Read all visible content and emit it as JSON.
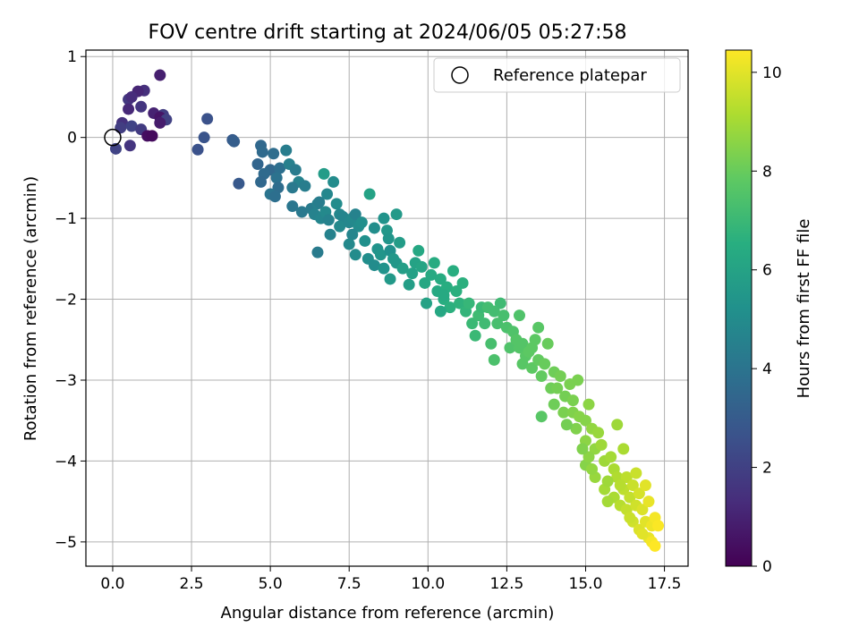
{
  "chart_data": {
    "type": "scatter",
    "title": "FOV centre drift starting at 2024/06/05 05:27:58",
    "xlabel": "Angular distance from reference (arcmin)",
    "ylabel": "Rotation from reference (arcmin)",
    "xlim": [
      -0.85,
      18.25
    ],
    "ylim": [
      -5.3,
      1.08
    ],
    "x_ticks": [
      "0.0",
      "2.5",
      "5.0",
      "7.5",
      "10.0",
      "12.5",
      "15.0",
      "17.5"
    ],
    "x_tick_values": [
      0,
      2.5,
      5,
      7.5,
      10,
      12.5,
      15,
      17.5
    ],
    "y_ticks": [
      "1",
      "0",
      "−1",
      "−2",
      "−3",
      "−4",
      "−5"
    ],
    "y_tick_values": [
      1,
      0,
      -1,
      -2,
      -3,
      -4,
      -5
    ],
    "grid": true,
    "legend": {
      "label": "Reference platepar",
      "placement": "top-right"
    },
    "reference_point": {
      "x": 0,
      "y": 0
    },
    "colorbar": {
      "label": "Hours from first FF file",
      "colormap": "viridis",
      "range": [
        0,
        10.45
      ],
      "ticks": [
        "0",
        "2",
        "4",
        "6",
        "8",
        "10"
      ],
      "tick_values": [
        0,
        2,
        4,
        6,
        8,
        10
      ]
    },
    "points": [
      [
        1.5,
        0.77,
        0.9
      ],
      [
        1.0,
        0.58,
        1.4
      ],
      [
        0.8,
        0.57,
        1.1
      ],
      [
        0.5,
        0.47,
        1.7
      ],
      [
        0.6,
        0.5,
        1.3
      ],
      [
        0.9,
        0.38,
        1.6
      ],
      [
        0.5,
        0.35,
        1.2
      ],
      [
        1.3,
        0.3,
        1.0
      ],
      [
        1.6,
        0.28,
        1.9
      ],
      [
        1.5,
        0.25,
        0.6
      ],
      [
        1.7,
        0.22,
        2.0
      ],
      [
        1.5,
        0.18,
        0.8
      ],
      [
        0.3,
        0.18,
        1.5
      ],
      [
        0.25,
        0.12,
        1.9
      ],
      [
        0.6,
        0.14,
        2.1
      ],
      [
        0.9,
        0.1,
        1.8
      ],
      [
        1.1,
        0.02,
        0.4
      ],
      [
        1.25,
        0.02,
        0.3
      ],
      [
        0.1,
        -0.14,
        2.1
      ],
      [
        0.55,
        -0.1,
        1.6
      ],
      [
        3.0,
        0.23,
        2.6
      ],
      [
        2.9,
        0.0,
        2.7
      ],
      [
        2.7,
        -0.15,
        2.6
      ],
      [
        3.8,
        -0.03,
        3.0
      ],
      [
        3.85,
        -0.05,
        3.1
      ],
      [
        4.0,
        -0.57,
        2.9
      ],
      [
        4.7,
        -0.1,
        3.5
      ],
      [
        4.75,
        -0.18,
        3.6
      ],
      [
        5.1,
        -0.2,
        3.7
      ],
      [
        4.6,
        -0.33,
        3.4
      ],
      [
        5.0,
        -0.4,
        3.5
      ],
      [
        5.3,
        -0.38,
        3.8
      ],
      [
        4.8,
        -0.45,
        3.6
      ],
      [
        5.2,
        -0.5,
        3.9
      ],
      [
        4.7,
        -0.55,
        3.5
      ],
      [
        5.25,
        -0.62,
        3.7
      ],
      [
        5.0,
        -0.7,
        4.0
      ],
      [
        5.15,
        -0.73,
        3.8
      ],
      [
        5.5,
        -0.16,
        4.4
      ],
      [
        5.6,
        -0.33,
        4.5
      ],
      [
        5.8,
        -0.4,
        4.3
      ],
      [
        5.9,
        -0.55,
        4.6
      ],
      [
        6.1,
        -0.6,
        4.4
      ],
      [
        5.7,
        -0.62,
        4.2
      ],
      [
        5.7,
        -0.85,
        4.1
      ],
      [
        6.0,
        -0.92,
        4.2
      ],
      [
        6.3,
        -0.88,
        4.3
      ],
      [
        6.5,
        -0.82,
        4.5
      ],
      [
        6.4,
        -0.95,
        4.6
      ],
      [
        6.6,
        -1.0,
        4.7
      ],
      [
        6.55,
        -0.8,
        4.4
      ],
      [
        6.7,
        -0.45,
        5.7
      ],
      [
        6.8,
        -0.7,
        4.8
      ],
      [
        6.75,
        -0.92,
        4.9
      ],
      [
        6.85,
        -1.02,
        4.6
      ],
      [
        7.0,
        -0.55,
        5.0
      ],
      [
        7.1,
        -0.82,
        5.0
      ],
      [
        7.2,
        -0.95,
        4.8
      ],
      [
        7.3,
        -0.98,
        4.7
      ],
      [
        7.2,
        -1.1,
        4.9
      ],
      [
        6.9,
        -1.2,
        4.6
      ],
      [
        6.5,
        -1.42,
        4.3
      ],
      [
        7.5,
        -1.05,
        4.8
      ],
      [
        7.6,
        -1.0,
        4.9
      ],
      [
        7.7,
        -0.95,
        4.6
      ],
      [
        7.8,
        -1.1,
        5.0
      ],
      [
        7.9,
        -1.05,
        5.1
      ],
      [
        7.6,
        -1.2,
        4.7
      ],
      [
        7.5,
        -1.32,
        4.9
      ],
      [
        7.7,
        -1.45,
        5.0
      ],
      [
        8.0,
        -1.28,
        5.2
      ],
      [
        8.1,
        -1.5,
        5.1
      ],
      [
        8.15,
        -0.7,
        6.0
      ],
      [
        8.3,
        -1.12,
        5.1
      ],
      [
        8.4,
        -1.38,
        5.3
      ],
      [
        8.5,
        -1.45,
        5.4
      ],
      [
        8.3,
        -1.58,
        5.0
      ],
      [
        8.6,
        -1.0,
        5.3
      ],
      [
        8.7,
        -1.15,
        5.5
      ],
      [
        8.75,
        -1.25,
        5.4
      ],
      [
        8.8,
        -1.4,
        5.2
      ],
      [
        8.9,
        -1.5,
        5.5
      ],
      [
        8.6,
        -1.62,
        5.3
      ],
      [
        9.0,
        -0.95,
        5.6
      ],
      [
        9.1,
        -1.3,
        5.7
      ],
      [
        9.0,
        -1.55,
        5.5
      ],
      [
        8.8,
        -1.75,
        5.6
      ],
      [
        9.2,
        -1.62,
        5.8
      ],
      [
        9.4,
        -1.82,
        5.8
      ],
      [
        9.5,
        -1.68,
        5.9
      ],
      [
        9.6,
        -1.55,
        6.0
      ],
      [
        9.7,
        -1.4,
        6.2
      ],
      [
        9.8,
        -1.6,
        6.1
      ],
      [
        9.9,
        -1.8,
        6.2
      ],
      [
        9.95,
        -2.05,
        6.0
      ],
      [
        10.1,
        -1.7,
        6.3
      ],
      [
        10.2,
        -1.55,
        6.4
      ],
      [
        10.3,
        -1.9,
        6.3
      ],
      [
        10.4,
        -1.75,
        6.4
      ],
      [
        10.5,
        -2.0,
        6.5
      ],
      [
        10.6,
        -1.85,
        6.5
      ],
      [
        10.7,
        -2.1,
        6.6
      ],
      [
        10.8,
        -1.65,
        6.5
      ],
      [
        10.9,
        -1.9,
        6.6
      ],
      [
        11.0,
        -2.05,
        6.7
      ],
      [
        11.1,
        -1.8,
        6.6
      ],
      [
        11.2,
        -2.15,
        6.8
      ],
      [
        10.4,
        -2.15,
        6.2
      ],
      [
        10.5,
        -1.95,
        6.3
      ],
      [
        11.3,
        -2.05,
        6.9
      ],
      [
        11.4,
        -2.3,
        7.0
      ],
      [
        11.5,
        -2.45,
        7.0
      ],
      [
        11.6,
        -2.2,
        7.1
      ],
      [
        11.7,
        -2.1,
        7.0
      ],
      [
        11.8,
        -2.3,
        7.1
      ],
      [
        11.9,
        -2.1,
        7.2
      ],
      [
        12.0,
        -2.55,
        7.3
      ],
      [
        12.2,
        -2.3,
        7.3
      ],
      [
        12.3,
        -2.05,
        7.1
      ],
      [
        12.1,
        -2.15,
        7.2
      ],
      [
        12.4,
        -2.2,
        7.3
      ],
      [
        12.1,
        -2.75,
        7.4
      ],
      [
        12.5,
        -2.35,
        7.4
      ],
      [
        12.6,
        -2.6,
        7.5
      ],
      [
        12.7,
        -2.4,
        7.5
      ],
      [
        12.8,
        -2.5,
        7.6
      ],
      [
        12.9,
        -2.2,
        7.5
      ],
      [
        12.9,
        -2.6,
        7.6
      ],
      [
        13.0,
        -2.55,
        7.6
      ],
      [
        13.0,
        -2.8,
        7.7
      ],
      [
        13.1,
        -2.7,
        7.7
      ],
      [
        13.2,
        -2.65,
        7.8
      ],
      [
        13.3,
        -2.6,
        7.8
      ],
      [
        13.3,
        -2.85,
        7.8
      ],
      [
        13.4,
        -2.5,
        7.8
      ],
      [
        13.5,
        -2.75,
        7.9
      ],
      [
        13.6,
        -2.95,
        7.9
      ],
      [
        13.7,
        -2.8,
        8.0
      ],
      [
        13.5,
        -2.35,
        7.7
      ],
      [
        13.8,
        -2.55,
        8.0
      ],
      [
        13.9,
        -3.1,
        8.1
      ],
      [
        13.6,
        -3.45,
        7.7
      ],
      [
        14.0,
        -2.9,
        8.1
      ],
      [
        14.0,
        -3.3,
        8.1
      ],
      [
        14.1,
        -3.1,
        8.2
      ],
      [
        14.2,
        -2.95,
        8.2
      ],
      [
        14.3,
        -3.4,
        8.3
      ],
      [
        14.35,
        -3.2,
        8.2
      ],
      [
        14.5,
        -3.05,
        8.3
      ],
      [
        14.6,
        -3.4,
        8.4
      ],
      [
        14.7,
        -3.6,
        8.4
      ],
      [
        14.8,
        -3.45,
        8.5
      ],
      [
        14.75,
        -3.0,
        8.3
      ],
      [
        15.0,
        -3.5,
        8.5
      ],
      [
        15.0,
        -3.75,
        8.6
      ],
      [
        15.0,
        -4.05,
        8.5
      ],
      [
        15.1,
        -3.3,
        8.6
      ],
      [
        15.2,
        -3.6,
        8.7
      ],
      [
        15.3,
        -3.85,
        8.7
      ],
      [
        15.1,
        -3.95,
        8.6
      ],
      [
        15.4,
        -3.65,
        8.8
      ],
      [
        15.3,
        -4.2,
        8.8
      ],
      [
        15.5,
        -3.8,
        8.9
      ],
      [
        15.6,
        -4.0,
        8.9
      ],
      [
        15.6,
        -4.35,
        9.0
      ],
      [
        15.8,
        -3.95,
        9.0
      ],
      [
        15.9,
        -4.1,
        9.1
      ],
      [
        16.0,
        -4.2,
        9.2
      ],
      [
        15.9,
        -4.45,
        9.1
      ],
      [
        16.1,
        -4.55,
        9.3
      ],
      [
        16.2,
        -3.85,
        9.1
      ],
      [
        16.2,
        -4.35,
        9.4
      ],
      [
        16.3,
        -4.2,
        9.4
      ],
      [
        16.4,
        -4.45,
        9.5
      ],
      [
        16.3,
        -4.6,
        9.5
      ],
      [
        16.5,
        -4.3,
        9.6
      ],
      [
        16.6,
        -4.55,
        9.7
      ],
      [
        16.5,
        -4.75,
        9.7
      ],
      [
        16.7,
        -4.4,
        9.8
      ],
      [
        16.8,
        -4.6,
        9.9
      ],
      [
        16.7,
        -4.85,
        9.9
      ],
      [
        16.9,
        -4.3,
        10.0
      ],
      [
        16.9,
        -4.75,
        10.0
      ],
      [
        17.0,
        -4.5,
        10.1
      ],
      [
        17.0,
        -4.95,
        10.1
      ],
      [
        17.1,
        -4.8,
        10.2
      ],
      [
        17.1,
        -5.0,
        10.3
      ],
      [
        17.2,
        -4.7,
        10.3
      ],
      [
        17.3,
        -4.8,
        10.4
      ],
      [
        17.2,
        -5.05,
        10.45
      ],
      [
        16.8,
        -4.9,
        10.0
      ],
      [
        16.6,
        -4.15,
        9.6
      ],
      [
        16.4,
        -4.7,
        9.6
      ],
      [
        16.1,
        -4.3,
        9.3
      ],
      [
        15.7,
        -4.5,
        9.0
      ],
      [
        16.0,
        -3.55,
        8.9
      ],
      [
        15.2,
        -4.1,
        8.7
      ],
      [
        15.7,
        -4.25,
        8.9
      ],
      [
        14.9,
        -3.85,
        8.4
      ],
      [
        14.4,
        -3.55,
        8.2
      ],
      [
        14.6,
        -3.25,
        8.3
      ]
    ]
  }
}
